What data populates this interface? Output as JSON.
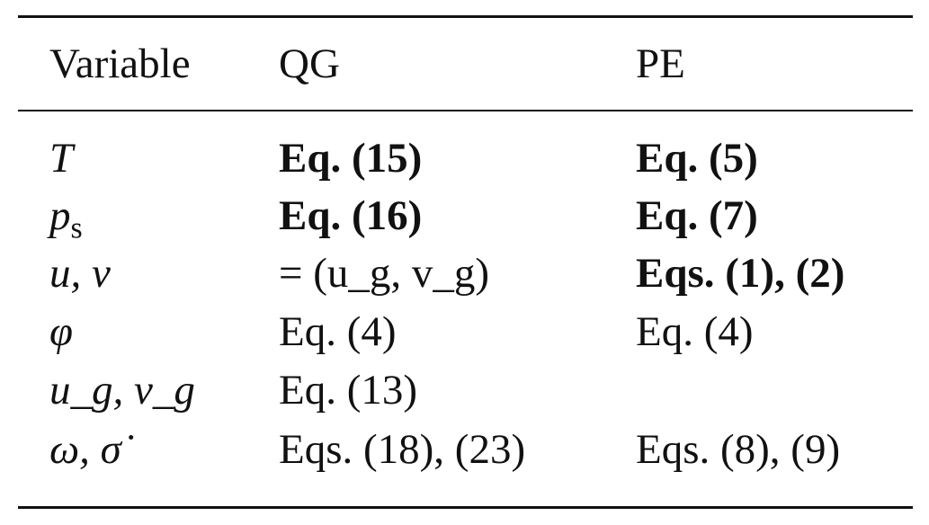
{
  "table": {
    "headers": [
      "Variable",
      "QG",
      "PE"
    ],
    "rows": [
      {
        "variable": {
          "symbol": "T",
          "sub": ""
        },
        "qg": {
          "text": "Eq. (15)",
          "bold": true
        },
        "pe": {
          "text": "Eq. (5)",
          "bold": true
        }
      },
      {
        "variable": {
          "symbol": "p",
          "sub": "s"
        },
        "qg": {
          "text": "Eq. (16)",
          "bold": true
        },
        "pe": {
          "text": "Eq. (7)",
          "bold": true
        }
      },
      {
        "variable": {
          "symbol": "u, v",
          "sub": ""
        },
        "qg": {
          "text": "= (u_g, v_g)",
          "bold": false
        },
        "pe": {
          "text": "Eqs. (1), (2)",
          "bold": true
        }
      },
      {
        "variable": {
          "symbol": "φ",
          "sub": ""
        },
        "qg": {
          "text": "Eq. (4)",
          "bold": false
        },
        "pe": {
          "text": "Eq. (4)",
          "bold": false
        }
      },
      {
        "variable": {
          "symbol": "u_g, v_g",
          "sub": ""
        },
        "qg": {
          "text": "Eq. (13)",
          "bold": false
        },
        "pe": {
          "text": "",
          "bold": false
        }
      },
      {
        "variable": {
          "symbol": "ω, σ̇",
          "sub": ""
        },
        "qg": {
          "text": "Eqs. (18), (23)",
          "bold": false
        },
        "pe": {
          "text": "Eqs. (8), (9)",
          "bold": false
        }
      }
    ]
  }
}
